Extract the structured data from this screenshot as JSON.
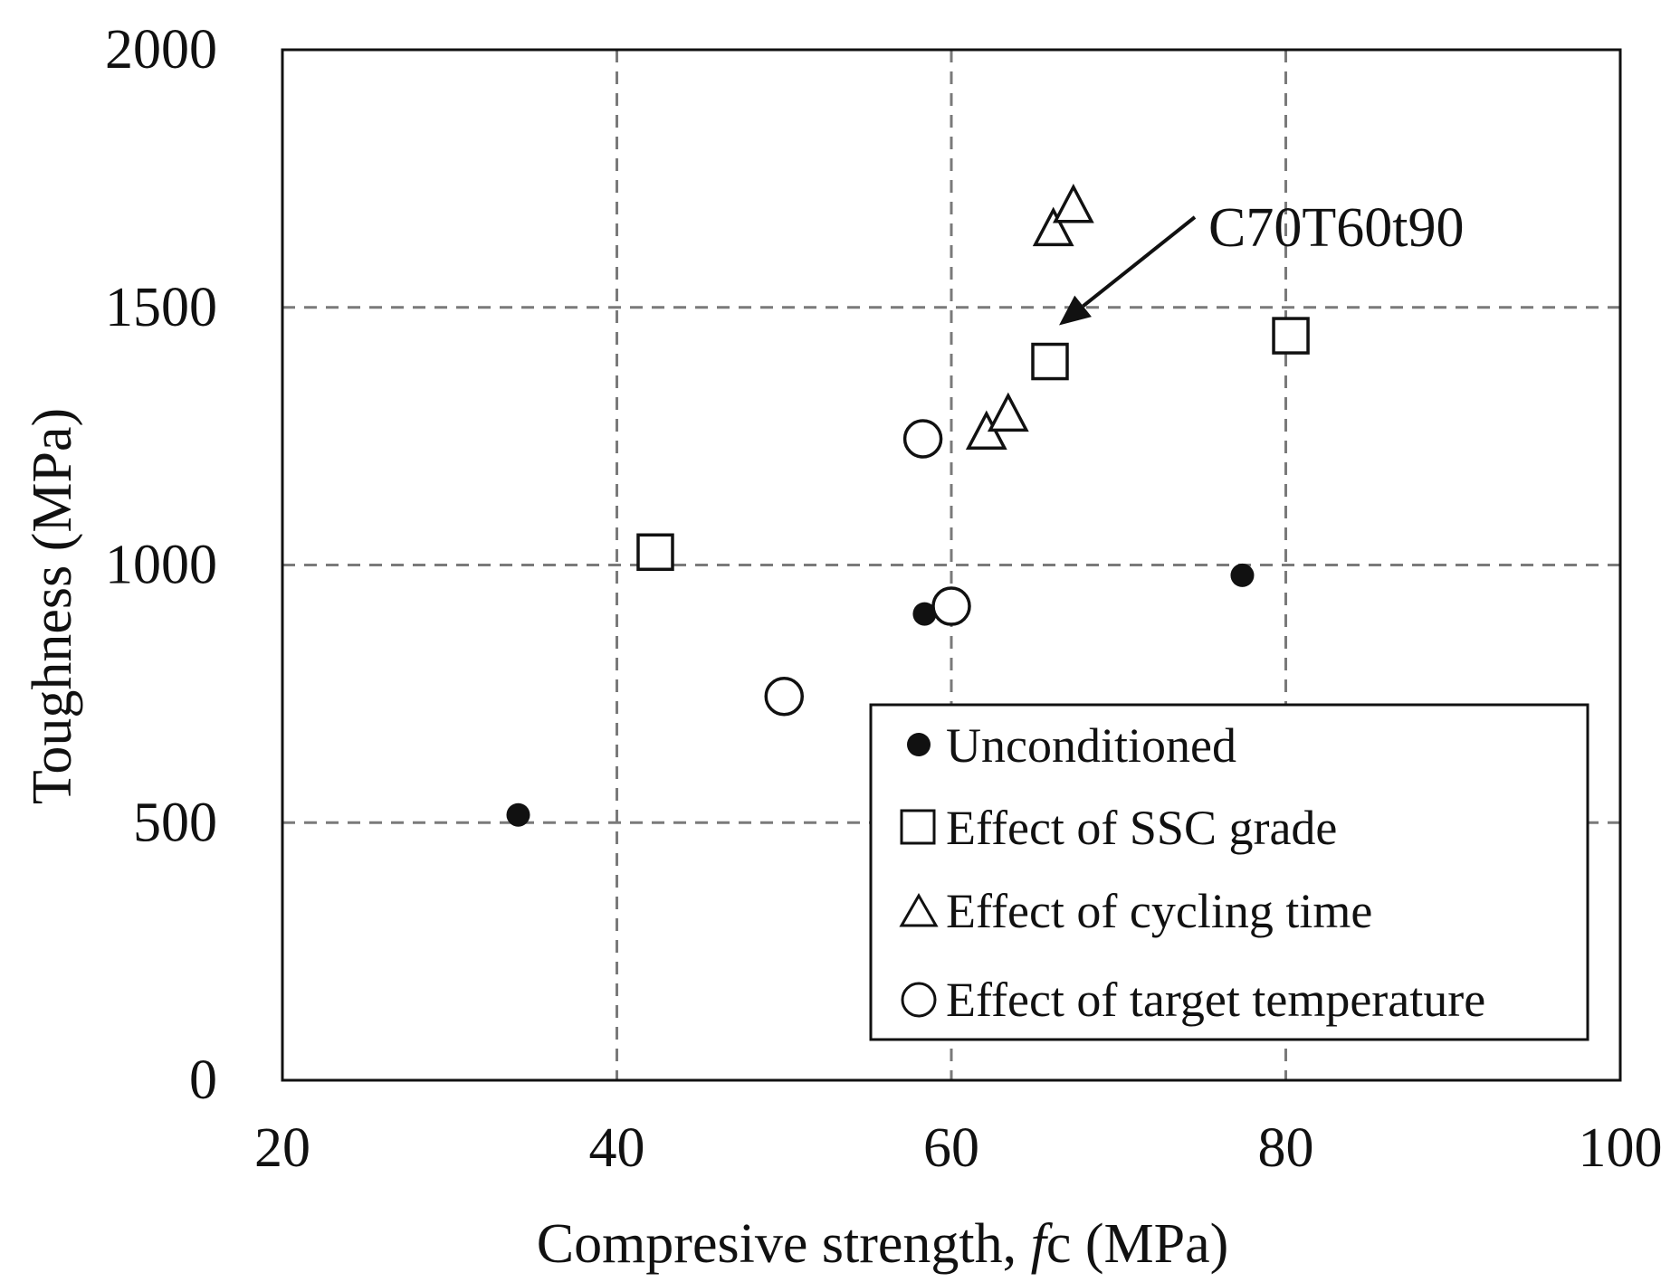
{
  "chart_data": {
    "type": "scatter",
    "title": "",
    "xlabel_main": "Compresive  strength, ",
    "xlabel_italic": "f",
    "xlabel_tail": "c (MPa)",
    "ylabel": "Toughness  (MPa)",
    "xlim": [
      20,
      100
    ],
    "ylim": [
      0,
      2000
    ],
    "xticks": [
      20,
      40,
      60,
      80,
      100
    ],
    "yticks": [
      0,
      500,
      1000,
      1500,
      2000
    ],
    "grid": true,
    "legend_position": "bottom-right",
    "series": [
      {
        "name": "Unconditioned",
        "marker": "filled-circle",
        "points": [
          {
            "x": 34.1,
            "y": 515
          },
          {
            "x": 58.4,
            "y": 905
          },
          {
            "x": 77.4,
            "y": 980
          }
        ]
      },
      {
        "name": "Effect of SSC grade",
        "marker": "square",
        "points": [
          {
            "x": 42.3,
            "y": 1025
          },
          {
            "x": 65.9,
            "y": 1395
          },
          {
            "x": 80.3,
            "y": 1445
          }
        ]
      },
      {
        "name": "Effect of cycling time",
        "marker": "triangle",
        "points": [
          {
            "x": 62.1,
            "y": 1255
          },
          {
            "x": 63.4,
            "y": 1290
          },
          {
            "x": 66.1,
            "y": 1650
          },
          {
            "x": 67.3,
            "y": 1695
          }
        ]
      },
      {
        "name": "Effect of target temperature",
        "marker": "circle",
        "points": [
          {
            "x": 50.0,
            "y": 745
          },
          {
            "x": 58.3,
            "y": 1245
          },
          {
            "x": 60.0,
            "y": 920
          }
        ]
      }
    ],
    "annotations": [
      {
        "text": "C70T60t90",
        "target": {
          "x": 65.9,
          "y": 1395
        }
      }
    ]
  }
}
